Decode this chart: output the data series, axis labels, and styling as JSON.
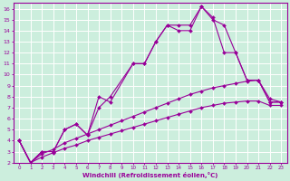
{
  "xlabel": "Windchill (Refroidissement éolien,°C)",
  "background_color": "#cceedd",
  "line_color": "#990099",
  "grid_color": "#ffffff",
  "xlim": [
    -0.5,
    23.5
  ],
  "ylim": [
    2,
    16.5
  ],
  "yticks": [
    2,
    3,
    4,
    5,
    6,
    7,
    8,
    9,
    10,
    11,
    12,
    13,
    14,
    15,
    16
  ],
  "xticks": [
    0,
    1,
    2,
    3,
    4,
    5,
    6,
    7,
    8,
    9,
    10,
    11,
    12,
    13,
    14,
    15,
    16,
    17,
    18,
    19,
    20,
    21,
    22,
    23
  ],
  "lines": [
    {
      "x": [
        0,
        1,
        2,
        3,
        4,
        5,
        6,
        7,
        8,
        10,
        11,
        12,
        13,
        14,
        15,
        16,
        17,
        18,
        19,
        20,
        21,
        22,
        23
      ],
      "y": [
        4,
        2,
        3,
        3,
        5,
        5.5,
        4.5,
        8,
        7.5,
        11,
        11,
        13,
        14.5,
        14.5,
        14.5,
        16.2,
        15.0,
        14.5,
        12,
        9.5,
        9.5,
        7.5,
        7.5
      ]
    },
    {
      "x": [
        0,
        1,
        2,
        3,
        4,
        5,
        6,
        7,
        8,
        10,
        11,
        12,
        13,
        14,
        15,
        16,
        17,
        18,
        19,
        20,
        21,
        22,
        23
      ],
      "y": [
        4,
        2,
        3,
        3,
        5,
        5.5,
        4.5,
        7,
        8,
        11,
        11,
        13,
        14.5,
        14.0,
        14.0,
        16.2,
        15.2,
        12.0,
        12,
        9.5,
        9.5,
        7.5,
        7.5
      ]
    },
    {
      "x": [
        0,
        1,
        2,
        3,
        4,
        5,
        6,
        7,
        8,
        9,
        10,
        11,
        12,
        13,
        14,
        15,
        16,
        17,
        18,
        19,
        20,
        21,
        22,
        23
      ],
      "y": [
        4,
        2,
        2.8,
        3.2,
        3.8,
        4.2,
        4.6,
        5.0,
        5.4,
        5.8,
        6.2,
        6.6,
        7.0,
        7.4,
        7.8,
        8.2,
        8.5,
        8.8,
        9.0,
        9.2,
        9.4,
        9.5,
        7.8,
        7.5
      ]
    },
    {
      "x": [
        0,
        1,
        2,
        3,
        4,
        5,
        6,
        7,
        8,
        9,
        10,
        11,
        12,
        13,
        14,
        15,
        16,
        17,
        18,
        19,
        20,
        21,
        22,
        23
      ],
      "y": [
        4,
        2,
        2.5,
        2.9,
        3.3,
        3.6,
        4.0,
        4.3,
        4.6,
        4.9,
        5.2,
        5.5,
        5.8,
        6.1,
        6.4,
        6.7,
        7.0,
        7.2,
        7.4,
        7.5,
        7.6,
        7.6,
        7.2,
        7.2
      ]
    }
  ]
}
